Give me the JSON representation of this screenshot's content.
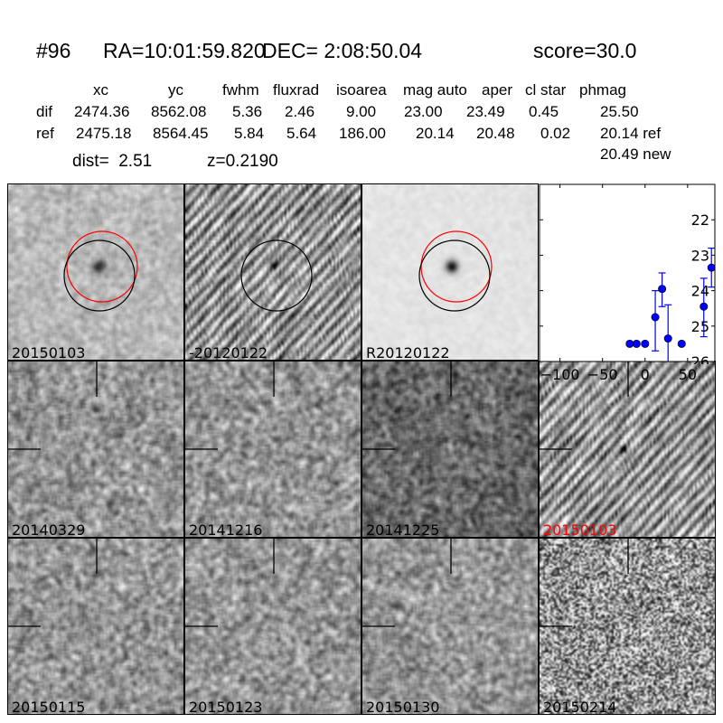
{
  "header": {
    "id": "#96",
    "ra": "RA=10:01:59.820",
    "dec": "DEC= 2:08:50.04",
    "score": "score=30.0"
  },
  "table": {
    "columns": [
      "xc",
      "yc",
      "fwhm",
      "fluxrad",
      "isoarea",
      "mag auto",
      "aper",
      "cl star",
      "phmag"
    ],
    "rows": [
      {
        "label": "dif",
        "values": [
          "2474.36",
          "8562.08",
          "5.36",
          "2.46",
          "9.00",
          "23.00",
          "23.49",
          "0.45",
          "25.50"
        ]
      },
      {
        "label": "ref",
        "values": [
          "2475.18",
          "8564.45",
          "5.84",
          "5.64",
          "186.00",
          "20.14",
          "20.48",
          "0.02",
          "20.14 ref"
        ]
      }
    ],
    "extra_phmag": "20.49 new",
    "dist": "dist=  2.51",
    "z": "z=0.2190"
  },
  "stamps": [
    {
      "label": "20150103",
      "kind": "new",
      "circles": [
        "red",
        "black"
      ]
    },
    {
      "label": "-20120122",
      "kind": "diff",
      "circles": [
        "black"
      ]
    },
    {
      "label": "R20120122",
      "kind": "ref",
      "circles": [
        "red",
        "black"
      ]
    },
    {
      "label": "20140329",
      "kind": "noise",
      "crosshair": true
    },
    {
      "label": "20141216",
      "kind": "noise",
      "crosshair": true
    },
    {
      "label": "20141225",
      "kind": "noise-dark",
      "crosshair": true
    },
    {
      "label": "20150103",
      "kind": "diff-stripes",
      "crosshair": true,
      "label_color": "#ff0000"
    },
    {
      "label": "20150115",
      "kind": "noise",
      "crosshair": true
    },
    {
      "label": "20150123",
      "kind": "noise",
      "crosshair": true
    },
    {
      "label": "20150130",
      "kind": "noise",
      "crosshair": true
    },
    {
      "label": "20150214",
      "kind": "noise-coarse",
      "crosshair": true
    }
  ],
  "chart_data": {
    "type": "scatter",
    "title": "",
    "xlabel": "",
    "ylabel": "",
    "xlim": [
      -124,
      82
    ],
    "ylim": [
      26,
      21
    ],
    "y_inverted": true,
    "xticks": [
      -100,
      -50,
      0,
      50
    ],
    "xtick_labels": [
      "−100",
      "−50",
      "0",
      "50"
    ],
    "yticks": [
      22,
      23,
      24,
      25,
      26
    ],
    "ytick_labels": [
      "22",
      "23",
      "24",
      "25",
      "26"
    ],
    "marker_color": "#0000ff",
    "grid": false,
    "points": [
      {
        "x": -18,
        "y": 25.5,
        "ylo": 25.45,
        "yhi": 25.55
      },
      {
        "x": -10,
        "y": 25.5,
        "ylo": 25.45,
        "yhi": 25.55
      },
      {
        "x": 0,
        "y": 25.5,
        "ylo": 25.45,
        "yhi": 25.55
      },
      {
        "x": 12,
        "y": 24.75,
        "ylo": 24.0,
        "yhi": 25.7
      },
      {
        "x": 20,
        "y": 23.95,
        "ylo": 23.5,
        "yhi": 24.45
      },
      {
        "x": 27,
        "y": 25.35,
        "ylo": 24.4,
        "yhi": 26.5
      },
      {
        "x": 43,
        "y": 25.5,
        "ylo": 25.45,
        "yhi": 25.55
      },
      {
        "x": 69,
        "y": 24.45,
        "ylo": 23.65,
        "yhi": 25.3
      },
      {
        "x": 78,
        "y": 23.35,
        "ylo": 22.8,
        "yhi": 23.9
      }
    ]
  }
}
